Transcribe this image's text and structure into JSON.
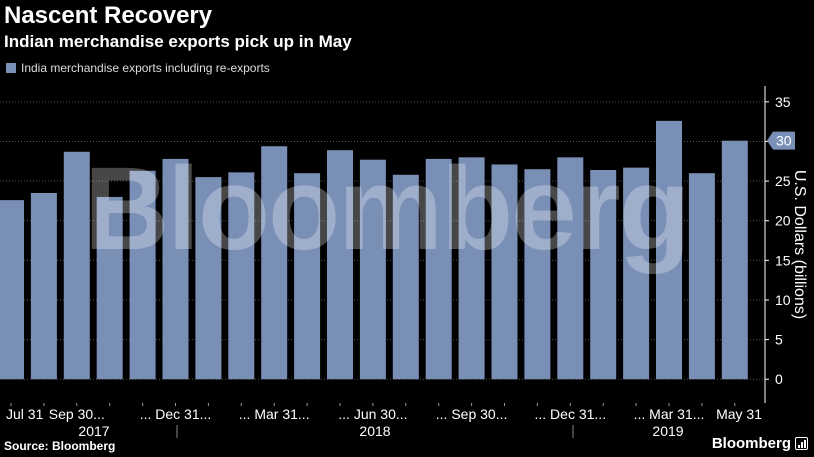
{
  "chart_data": {
    "type": "bar",
    "title": "Nascent Recovery",
    "subtitle": "Indian merchandise exports pick up in May",
    "series": [
      {
        "name": "India merchandise exports including re-exports",
        "color": "#7a8fb6",
        "values": [
          22.6,
          23.5,
          28.7,
          23.0,
          26.3,
          27.8,
          25.5,
          26.1,
          29.4,
          26.0,
          28.9,
          27.7,
          25.8,
          27.8,
          28.0,
          27.1,
          26.5,
          28.0,
          26.4,
          26.7,
          32.6,
          26.0,
          30.1
        ]
      }
    ],
    "x_tick_labels": [
      "Jul 31",
      "Sep 30...",
      "... Dec 31...",
      "... Mar 31...",
      "... Jun 30...",
      "... Sep 30...",
      "... Dec 31...",
      "... Mar 31...",
      "May 31"
    ],
    "year_labels": [
      "2017",
      "2018",
      "2019"
    ],
    "ylabel": "U.S. Dollars (billions)",
    "ylim": [
      -3,
      37
    ],
    "yticks": [
      0,
      5,
      10,
      15,
      20,
      25,
      30,
      35
    ],
    "latest_value_label": "30",
    "grid": true,
    "legend_position": "top-left"
  },
  "watermark": "Bloomberg",
  "footer": {
    "source": "Source: Bloomberg",
    "brand": "Bloomberg"
  }
}
